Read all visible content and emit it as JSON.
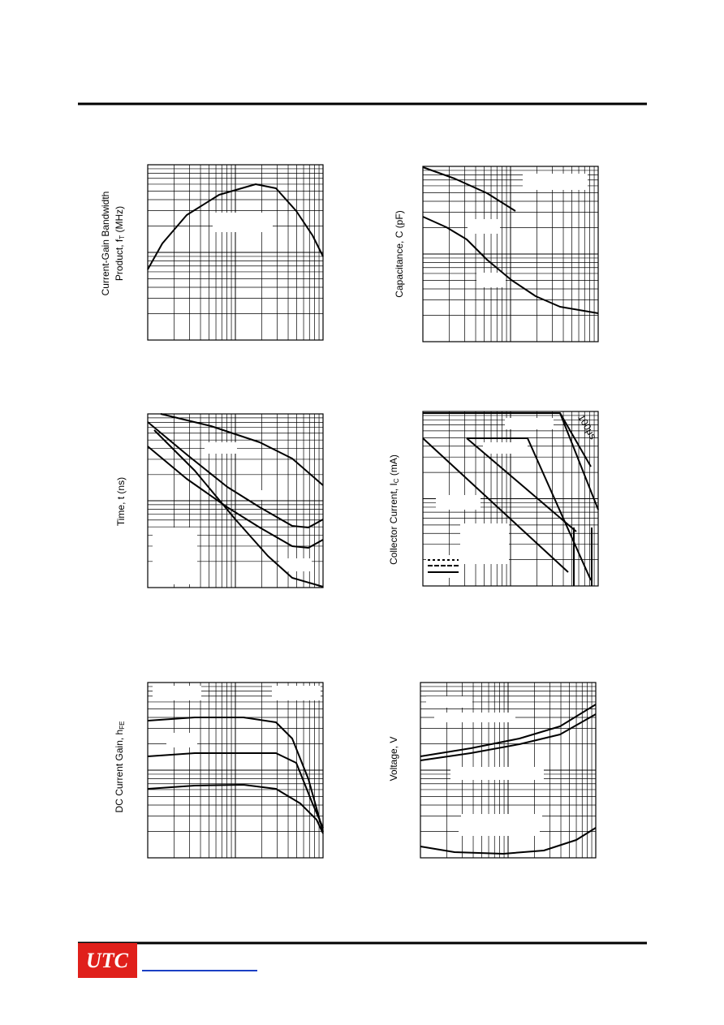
{
  "graphs": [
    {
      "y_label_lines": [
        {
          "text": "Current-Gain Bandwidth"
        },
        {
          "text": "Product, f",
          "sub": "T",
          "after": " (MHz)"
        }
      ]
    },
    {
      "y_label_lines": [
        {
          "text": "Capacitance, C (pF)"
        }
      ]
    },
    {
      "y_label_lines": [
        {
          "text": "Time, t (ns)"
        }
      ]
    },
    {
      "y_label_lines": [
        {
          "text": "Collector Current, I",
          "sub": "C",
          "after": " (mA)"
        }
      ],
      "annotation": "100μs"
    },
    {
      "y_label_lines": [
        {
          "text": "DC Current Gain, h",
          "sub": "FE"
        }
      ]
    },
    {
      "y_label_lines": [
        {
          "text": "Voltage, V"
        }
      ]
    }
  ],
  "footer": {
    "logo": "UTC"
  }
}
